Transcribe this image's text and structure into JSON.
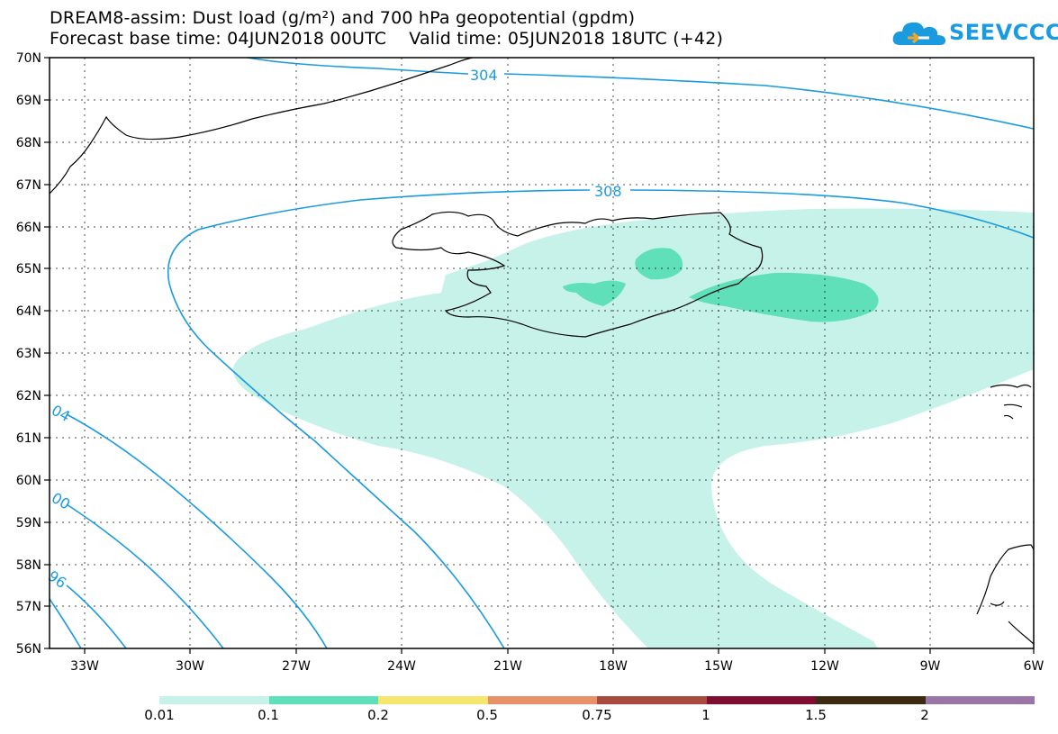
{
  "header": {
    "title_line1": "DREAM8-assim: Dust load (g/m²) and 700 hPa geopotential (gpdm)",
    "title_line2": "Forecast base time: 04JUN2018 00UTC    Valid time: 05JUN2018 18UTC (+42)"
  },
  "logo": {
    "text": "SEEVCCC",
    "icon": "cloud-icon"
  },
  "map": {
    "lon_labels": [
      "33W",
      "30W",
      "27W",
      "24W",
      "21W",
      "18W",
      "15W",
      "12W",
      "9W",
      "6W"
    ],
    "lat_labels": [
      "70N",
      "69N",
      "68N",
      "67N",
      "66N",
      "65N",
      "64N",
      "63N",
      "62N",
      "61N",
      "60N",
      "59N",
      "58N",
      "57N",
      "56N"
    ],
    "contour_labels": [
      "304",
      "308",
      "04",
      "00",
      "96"
    ],
    "colors": {
      "contour": "#1a9be0",
      "coast": "#000000",
      "dust_low": "#c6f2ea",
      "dust_mid": "#5fe0b9"
    }
  },
  "legend": {
    "colors": [
      "#c6f2ea",
      "#5fe0b9",
      "#f5e66e",
      "#e8906a",
      "#a84b3e",
      "#800d32",
      "#3d2a12",
      "#9a76a6"
    ],
    "labels": [
      "0.01",
      "0.1",
      "0.2",
      "0.5",
      "0.75",
      "1",
      "1.5",
      "2"
    ]
  }
}
